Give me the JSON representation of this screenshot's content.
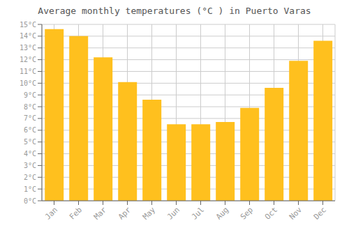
{
  "chart_data": {
    "type": "bar",
    "title": "Average monthly temperatures (°C ) in Puerto Varas",
    "categories": [
      "Jan",
      "Feb",
      "Mar",
      "Apr",
      "May",
      "Jun",
      "Jul",
      "Aug",
      "Sep",
      "Oct",
      "Nov",
      "Dec"
    ],
    "values": [
      14.6,
      14.0,
      12.2,
      10.1,
      8.6,
      6.5,
      6.5,
      6.7,
      7.9,
      9.6,
      11.9,
      13.6
    ],
    "color": "#FFC01E",
    "ylim": [
      0,
      15
    ],
    "yticks": [
      {
        "value": 0,
        "label": "0°C"
      },
      {
        "value": 1,
        "label": "1°C"
      },
      {
        "value": 2,
        "label": "2°C"
      },
      {
        "value": 3,
        "label": "3°C"
      },
      {
        "value": 4,
        "label": "4°C"
      },
      {
        "value": 5,
        "label": "5°C"
      },
      {
        "value": 6,
        "label": "6°C"
      },
      {
        "value": 7,
        "label": "7°C"
      },
      {
        "value": 8,
        "label": "8°C"
      },
      {
        "value": 9,
        "label": "9°C"
      },
      {
        "value": 10,
        "label": "10°C"
      },
      {
        "value": 11,
        "label": "11°C"
      },
      {
        "value": 12,
        "label": "12°C"
      },
      {
        "value": 13,
        "label": "13°C"
      },
      {
        "value": 14,
        "label": "14°C"
      },
      {
        "value": 15,
        "label": "15°C"
      }
    ],
    "grid": true
  }
}
